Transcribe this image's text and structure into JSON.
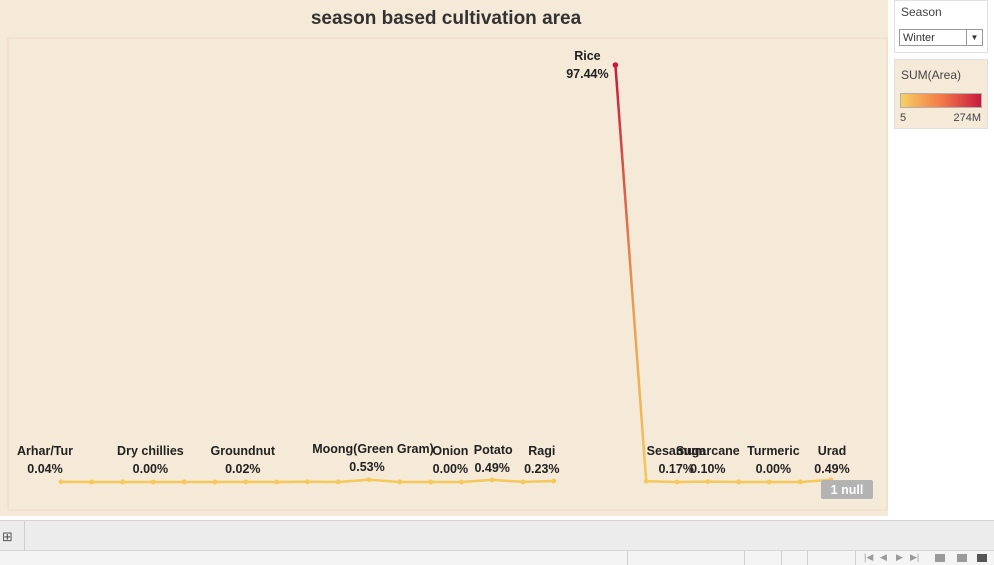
{
  "chart_data": {
    "type": "line",
    "title": "season based cultivation area",
    "categories": [
      "Arhar/Tur",
      "",
      "",
      "Dry chillies",
      "",
      "",
      "Groundnut",
      "",
      "",
      "",
      "Moong(Green Gram)",
      "",
      "",
      "Onion",
      "Potato",
      "",
      "Ragi",
      "",
      "Rice",
      "Sesamum",
      "",
      "Sugarcane",
      "",
      "Turmeric",
      "",
      "Urad"
    ],
    "values": [
      0.04,
      0.0,
      0.01,
      0.0,
      0.01,
      0.0,
      0.02,
      0.0,
      0.06,
      0.01,
      0.53,
      0.01,
      0.0,
      0.0,
      0.49,
      0.03,
      0.23,
      null,
      97.44,
      0.17,
      0.01,
      0.1,
      0.01,
      0.0,
      0.01,
      0.49
    ],
    "labels": [
      {
        "index": 0,
        "name": "Arhar/Tur",
        "pct": "0.04%"
      },
      {
        "index": 3,
        "name": "Dry chillies",
        "pct": "0.00%"
      },
      {
        "index": 6,
        "name": "Groundnut",
        "pct": "0.02%"
      },
      {
        "index": 10,
        "name": "Moong(Green Gram)",
        "pct": "0.53%"
      },
      {
        "index": 13,
        "name": "Onion",
        "pct": "0.00%"
      },
      {
        "index": 14,
        "name": "Potato",
        "pct": "0.49%"
      },
      {
        "index": 16,
        "name": "Ragi",
        "pct": "0.23%"
      },
      {
        "index": 18,
        "name": "Rice",
        "pct": "97.44%"
      },
      {
        "index": 19,
        "name": "Sesamum",
        "pct": "0.17%"
      },
      {
        "index": 21,
        "name": "Sugarcane",
        "pct": "0.10%"
      },
      {
        "index": 23,
        "name": "Turmeric",
        "pct": "0.00%"
      },
      {
        "index": 25,
        "name": "Urad",
        "pct": "0.49%"
      }
    ],
    "ylim": [
      0,
      100
    ],
    "null_indicator": "1 null",
    "colors": {
      "low": "#f5c85a",
      "mid": "#f07a45",
      "high": "#c8193c"
    }
  },
  "filter": {
    "title": "Season",
    "value": "Winter"
  },
  "legend": {
    "title": "SUM(Area)",
    "min": "5",
    "max": "274M",
    "ramp_start": "#f8cf63",
    "ramp_mid": "#f37a48",
    "ramp_end": "#c71b3e"
  }
}
